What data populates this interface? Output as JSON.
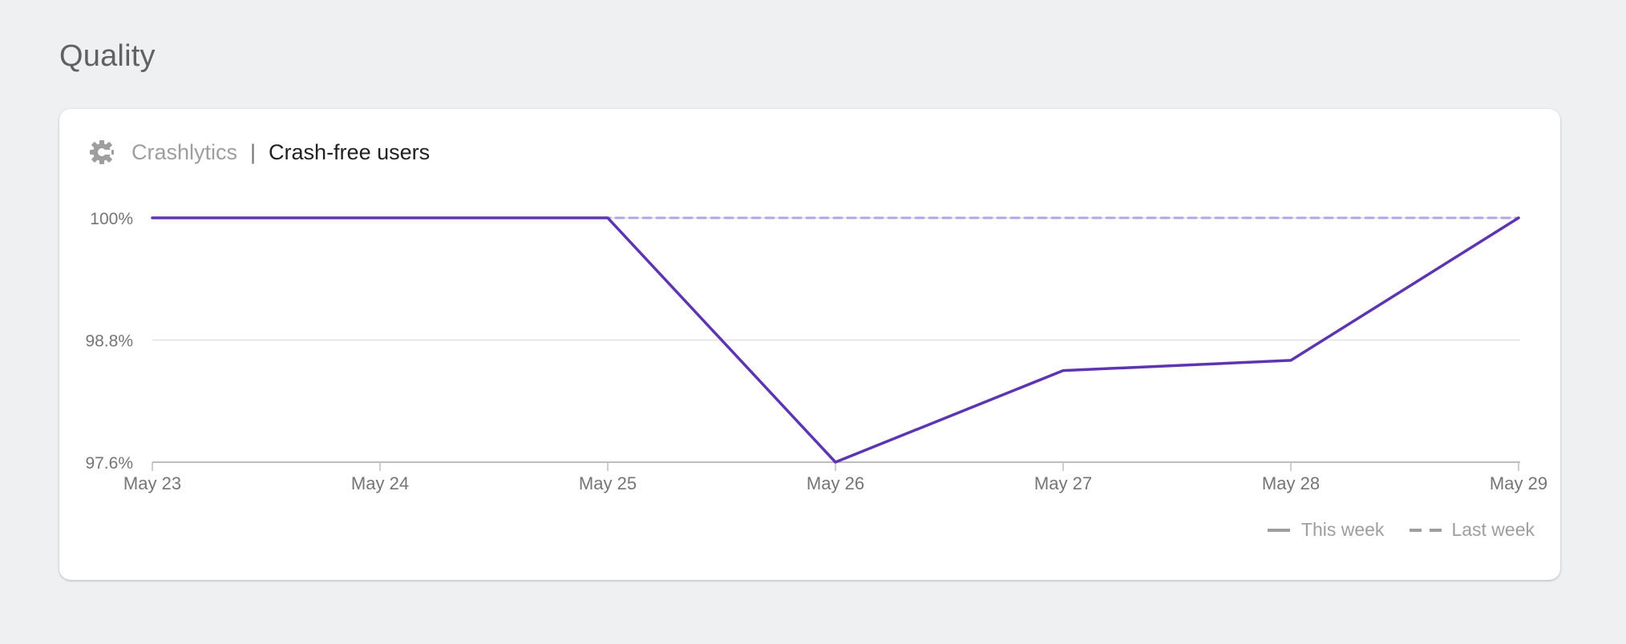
{
  "section": {
    "title": "Quality"
  },
  "card": {
    "product": "Crashlytics",
    "separator": "|",
    "metric": "Crash-free users",
    "icon": "crashlytics-icon"
  },
  "legend": {
    "this_week": "This week",
    "last_week": "Last week"
  },
  "colors": {
    "this_week": "#5e35b1",
    "last_week": "#b3a6e6",
    "gridline": "#e0e0e0",
    "axis": "#bdbdbd",
    "tick_label": "#757575"
  },
  "chart_data": {
    "type": "line",
    "categories": [
      "May 23",
      "May 24",
      "May 25",
      "May 26",
      "May 27",
      "May 28",
      "May 29"
    ],
    "y_ticks": [
      {
        "value": 100,
        "label": "100%"
      },
      {
        "value": 98.8,
        "label": "98.8%"
      },
      {
        "value": 97.6,
        "label": "97.6%"
      }
    ],
    "ylim": [
      97.6,
      100
    ],
    "series": [
      {
        "name": "This week",
        "style": "solid",
        "values": [
          100,
          100,
          100,
          97.6,
          98.5,
          98.6,
          100
        ]
      },
      {
        "name": "Last week",
        "style": "dashed",
        "values": [
          100,
          100,
          100,
          100,
          100,
          100,
          100
        ]
      }
    ],
    "grid": true,
    "legend_position": "bottom-right"
  }
}
